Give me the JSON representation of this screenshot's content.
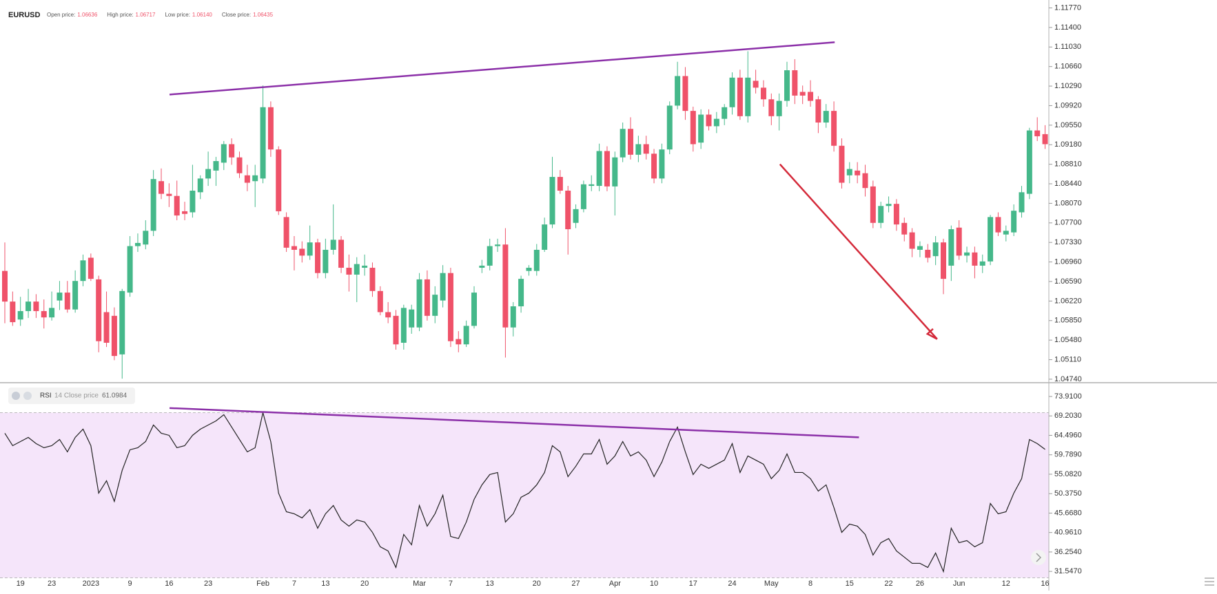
{
  "chart_data": [
    {
      "type": "candlestick",
      "title": "EURUSD",
      "readout": [
        {
          "label": "Open price:",
          "value": "1.06636"
        },
        {
          "label": "High price:",
          "value": "1.06717"
        },
        {
          "label": "Low price:",
          "value": "1.06140"
        },
        {
          "label": "Close price:",
          "value": "1.06435"
        }
      ],
      "categories": [
        null,
        null,
        "19",
        null,
        null,
        null,
        "23",
        null,
        null,
        null,
        null,
        "2023",
        null,
        null,
        null,
        null,
        "9",
        null,
        null,
        null,
        null,
        "16",
        null,
        null,
        null,
        null,
        "23",
        null,
        null,
        null,
        null,
        null,
        null,
        "Feb",
        null,
        null,
        null,
        "7",
        null,
        null,
        null,
        "13",
        null,
        null,
        null,
        null,
        "20",
        null,
        null,
        null,
        null,
        null,
        null,
        "Mar",
        null,
        null,
        null,
        "7",
        null,
        null,
        null,
        null,
        "13",
        null,
        null,
        null,
        null,
        null,
        "20",
        null,
        null,
        null,
        null,
        "27",
        null,
        null,
        null,
        null,
        "Apr",
        null,
        null,
        null,
        null,
        "10",
        null,
        null,
        null,
        null,
        "17",
        null,
        null,
        null,
        null,
        "24",
        null,
        null,
        null,
        null,
        "May",
        null,
        null,
        null,
        null,
        "8",
        null,
        null,
        null,
        null,
        "15",
        null,
        null,
        null,
        null,
        "22",
        null,
        null,
        null,
        "26",
        null,
        null,
        null,
        null,
        "Jun",
        null,
        null,
        null,
        null,
        null,
        "12",
        null,
        null,
        null,
        null,
        "16"
      ],
      "open": [
        1.0679,
        1.0621,
        1.0587,
        1.0603,
        1.0621,
        1.0603,
        1.0591,
        1.0623,
        1.0638,
        1.0606,
        1.066,
        1.0704,
        1.0663,
        1.0601,
        1.0594,
        1.0521,
        1.0638,
        1.0726,
        1.0729,
        1.0755,
        1.0849,
        1.0825,
        1.0821,
        1.0792,
        1.079,
        1.0828,
        1.0854,
        1.0869,
        1.0884,
        1.0919,
        1.0894,
        1.086,
        1.0849,
        1.0854,
        1.0989,
        1.0909,
        1.0781,
        1.0726,
        1.0721,
        1.0708,
        1.0733,
        1.0675,
        1.0719,
        1.0738,
        1.0685,
        1.0672,
        1.0685,
        1.0685,
        1.0641,
        1.0601,
        1.0594,
        1.0543,
        1.0572,
        1.0572,
        1.0663,
        1.0594,
        1.0623,
        1.0675,
        1.055,
        1.054,
        1.0575,
        1.0685,
        1.0689,
        1.0726,
        1.0729,
        1.0572,
        1.0612,
        1.0679,
        1.0679,
        1.0719,
        1.0767,
        1.0857,
        1.0831,
        1.077,
        1.0796,
        1.084,
        1.084,
        1.0906,
        1.0839,
        1.0894,
        1.0948,
        1.0899,
        1.0919,
        1.0901,
        1.0854,
        1.0909,
        1.0992,
        1.1048,
        1.0982,
        1.0922,
        1.0975,
        1.0953,
        1.0967,
        1.0989,
        1.1045,
        1.0972,
        1.1039,
        1.1026,
        1.1004,
        1.0972,
        1.1001,
        1.1059,
        1.1018,
        1.1018,
        1.1004,
        1.096,
        1.0982,
        1.0916,
        1.086,
        1.0869,
        1.0864,
        1.0839,
        1.077,
        1.0802,
        1.0806,
        1.077,
        1.0752,
        1.0719,
        1.0719,
        1.0707,
        1.0733,
        1.0689,
        1.0761,
        1.0708,
        1.0714,
        1.0689,
        1.0697,
        1.0781,
        1.0748,
        1.0752,
        1.079,
        1.0825,
        1.0945,
        1.0938
      ],
      "high": [
        1.0733,
        1.064,
        1.063,
        1.0645,
        1.0635,
        1.0625,
        1.064,
        1.066,
        1.066,
        1.068,
        1.071,
        1.0712,
        1.067,
        1.064,
        1.061,
        1.0645,
        1.0745,
        1.075,
        1.0775,
        1.087,
        1.0873,
        1.0845,
        1.085,
        1.081,
        1.088,
        1.086,
        1.0905,
        1.0895,
        1.0925,
        1.093,
        1.0905,
        1.088,
        1.088,
        1.103,
        1.1,
        1.0915,
        1.079,
        1.0745,
        1.0735,
        1.0765,
        1.074,
        1.074,
        1.0805,
        1.0745,
        1.071,
        1.0705,
        1.071,
        1.0695,
        1.065,
        1.062,
        1.0605,
        1.0615,
        1.0615,
        1.0675,
        1.068,
        1.065,
        1.069,
        1.0685,
        1.0565,
        1.0585,
        1.065,
        1.07,
        1.074,
        1.074,
        1.076,
        1.062,
        1.067,
        1.069,
        1.073,
        1.078,
        1.0895,
        1.087,
        1.084,
        1.0805,
        1.085,
        1.086,
        1.092,
        1.0915,
        1.0905,
        1.096,
        1.097,
        1.0935,
        1.0935,
        1.091,
        1.092,
        1.1,
        1.1075,
        1.1065,
        1.099,
        1.0985,
        1.0985,
        1.098,
        1.0995,
        1.1055,
        1.106,
        1.1095,
        1.106,
        1.104,
        1.1015,
        1.1015,
        1.1075,
        1.108,
        1.103,
        1.104,
        1.101,
        1.0995,
        1.1,
        1.093,
        1.0885,
        1.0885,
        1.088,
        1.085,
        1.081,
        1.082,
        1.0815,
        1.078,
        1.076,
        1.0735,
        1.073,
        1.0745,
        1.074,
        1.0765,
        1.0775,
        1.0725,
        1.0725,
        1.071,
        1.0785,
        1.079,
        1.0765,
        1.0805,
        1.084,
        1.095,
        1.097,
        1.0955
      ],
      "low": [
        1.058,
        1.0575,
        1.0575,
        1.059,
        1.059,
        1.057,
        1.0585,
        1.0605,
        1.06,
        1.06,
        1.065,
        1.066,
        1.0525,
        1.0535,
        1.051,
        1.0475,
        1.063,
        1.0715,
        1.072,
        1.0745,
        1.0815,
        1.08,
        1.0775,
        1.0775,
        1.078,
        1.0815,
        1.084,
        1.084,
        1.087,
        1.088,
        1.0855,
        1.083,
        1.08,
        1.0845,
        1.0895,
        1.0785,
        1.0715,
        1.068,
        1.0695,
        1.07,
        1.0665,
        1.0665,
        1.071,
        1.0675,
        1.064,
        1.062,
        1.067,
        1.063,
        1.0595,
        1.058,
        1.053,
        1.053,
        1.056,
        1.0565,
        1.0585,
        1.058,
        1.061,
        1.0535,
        1.0525,
        1.0535,
        1.057,
        1.0675,
        1.068,
        1.0715,
        1.0515,
        1.0555,
        1.06,
        1.067,
        1.067,
        1.0715,
        1.076,
        1.0825,
        1.071,
        1.076,
        1.079,
        1.083,
        1.083,
        1.083,
        1.0784,
        1.0885,
        1.089,
        1.0885,
        1.089,
        1.0845,
        1.0845,
        1.09,
        1.0985,
        1.0965,
        1.0905,
        1.091,
        1.0945,
        1.094,
        1.0955,
        1.0975,
        1.0965,
        1.096,
        1.1015,
        1.099,
        1.0955,
        1.0945,
        1.099,
        1.0995,
        1.0995,
        1.099,
        1.094,
        1.095,
        1.0905,
        1.0835,
        1.0845,
        1.0845,
        1.082,
        1.076,
        1.076,
        1.079,
        1.0755,
        1.0735,
        1.0705,
        1.0705,
        1.0695,
        1.069,
        1.0635,
        1.066,
        1.07,
        1.0695,
        1.0665,
        1.0675,
        1.069,
        1.0745,
        1.0735,
        1.0745,
        1.078,
        1.0815,
        1.0925,
        1.091
      ],
      "close": [
        1.0621,
        1.0582,
        1.0603,
        1.0621,
        1.0603,
        1.0591,
        1.0609,
        1.0638,
        1.0606,
        1.066,
        1.0699,
        1.0664,
        1.0546,
        1.0543,
        1.0518,
        1.0641,
        1.0726,
        1.0732,
        1.0755,
        1.0853,
        1.0825,
        1.0821,
        1.0784,
        1.0787,
        1.0831,
        1.0854,
        1.0872,
        1.0887,
        1.0919,
        1.0894,
        1.0864,
        1.0846,
        1.086,
        1.0989,
        1.0909,
        1.0792,
        1.0723,
        1.0719,
        1.0708,
        1.0733,
        1.0675,
        1.0719,
        1.0738,
        1.0685,
        1.0672,
        1.0692,
        1.0689,
        1.0641,
        1.0601,
        1.0591,
        1.054,
        1.0609,
        1.0606,
        1.0663,
        1.0594,
        1.0634,
        1.0675,
        1.0546,
        1.054,
        1.0575,
        1.0638,
        1.0689,
        1.0726,
        1.0729,
        1.0572,
        1.0612,
        1.0664,
        1.0685,
        1.0719,
        1.0767,
        1.0857,
        1.0831,
        1.0758,
        1.0796,
        1.0843,
        1.0843,
        1.0906,
        1.0839,
        1.0894,
        1.0948,
        1.0899,
        1.0919,
        1.0901,
        1.0854,
        1.0909,
        1.0992,
        1.1048,
        1.0982,
        1.0919,
        1.0975,
        1.0953,
        1.0967,
        1.0989,
        1.1045,
        1.0972,
        1.1045,
        1.1026,
        1.1004,
        1.0972,
        1.1001,
        1.1059,
        1.1011,
        1.1011,
        1.1001,
        1.096,
        1.0982,
        1.0916,
        1.0846,
        1.0872,
        1.086,
        1.0836,
        1.077,
        1.0802,
        1.0806,
        1.0767,
        1.0748,
        1.0721,
        1.0726,
        1.0704,
        1.0733,
        1.0664,
        1.0758,
        1.0708,
        1.0714,
        1.0689,
        1.0697,
        1.0781,
        1.0752,
        1.0755,
        1.0793,
        1.0828,
        1.0945,
        1.0934,
        1.0919
      ],
      "up_color": "#45b88a",
      "down_color": "#ef5269",
      "ylim": [
        1.047,
        1.1192
      ],
      "yticks": [
        {
          "value": 1.1177,
          "label": "1.11770"
        },
        {
          "value": 1.114,
          "label": "1.11400"
        },
        {
          "value": 1.1103,
          "label": "1.11030"
        },
        {
          "value": 1.1066,
          "label": "1.10660"
        },
        {
          "value": 1.1029,
          "label": "1.10290"
        },
        {
          "value": 1.0992,
          "label": "1.09920"
        },
        {
          "value": 1.0955,
          "label": "1.09550"
        },
        {
          "value": 1.0918,
          "label": "1.09180"
        },
        {
          "value": 1.0881,
          "label": "1.08810"
        },
        {
          "value": 1.0844,
          "label": "1.08440"
        },
        {
          "value": 1.0807,
          "label": "1.08070"
        },
        {
          "value": 1.077,
          "label": "1.07700"
        },
        {
          "value": 1.0733,
          "label": "1.07330"
        },
        {
          "value": 1.0696,
          "label": "1.06960"
        },
        {
          "value": 1.0659,
          "label": "1.06590"
        },
        {
          "value": 1.0622,
          "label": "1.06220"
        },
        {
          "value": 1.0585,
          "label": "1.05850"
        },
        {
          "value": 1.0548,
          "label": "1.05480"
        },
        {
          "value": 1.0511,
          "label": "1.05110"
        },
        {
          "value": 1.0474,
          "label": "1.04740"
        }
      ],
      "grid": false,
      "trendlines": [
        {
          "x": [
            21.06,
            106.1
          ],
          "y": [
            1.1013,
            1.1112
          ],
          "color": "#8b2fa8"
        }
      ],
      "arrows": [
        {
          "x": [
            99.1,
            119.2
          ],
          "y": [
            1.0881,
            1.055
          ],
          "color": "#d42a3a"
        }
      ]
    },
    {
      "type": "line",
      "title": "RSI",
      "subtitle": "14 Close price",
      "value_label": "61.0984",
      "values": [
        65,
        62,
        63,
        64,
        62.5,
        61.5,
        62,
        63.5,
        60.5,
        64,
        66,
        62,
        50.5,
        53.5,
        48.5,
        56,
        61,
        61.5,
        63,
        67,
        65,
        64.5,
        61.5,
        62,
        64.5,
        66,
        67,
        68,
        69.5,
        66.5,
        63.5,
        60.5,
        61.5,
        70,
        63,
        50.5,
        46,
        45.5,
        44.5,
        46.5,
        42,
        45.5,
        47.5,
        44,
        42.5,
        44,
        43.5,
        41,
        37.5,
        36.5,
        32.5,
        40.5,
        38,
        47.5,
        42.5,
        45.5,
        50,
        40,
        39.5,
        43.5,
        49,
        52.5,
        55,
        55.5,
        43.5,
        45.5,
        49.5,
        50.5,
        52.5,
        55.5,
        62,
        60.5,
        54.5,
        57,
        60,
        60,
        63.5,
        57.5,
        59.5,
        63,
        59.5,
        60.5,
        58.5,
        54.5,
        58,
        63,
        66.5,
        60.5,
        55,
        57.5,
        56.5,
        57.5,
        58.5,
        62.5,
        55.5,
        59.5,
        58.5,
        57.5,
        54,
        56,
        60,
        55.5,
        55.5,
        54,
        51,
        52.5,
        47,
        41,
        43,
        42.5,
        40.5,
        35.5,
        38.5,
        39.5,
        36.5,
        35,
        33.5,
        33.5,
        32.5,
        36,
        31.5,
        42,
        38.5,
        39,
        37.5,
        38.5,
        48,
        45.5,
        46,
        50.5,
        54,
        63.5,
        62.5,
        61.0984
      ],
      "color": "#222222",
      "band_color": "#f5e5fa",
      "levels": [
        30,
        70
      ],
      "ylim": [
        30.24,
        77.08
      ],
      "yticks": [
        {
          "value": 73.91,
          "label": "73.9100"
        },
        {
          "value": 69.203,
          "label": "69.2030"
        },
        {
          "value": 64.496,
          "label": "64.4960"
        },
        {
          "value": 59.789,
          "label": "59.7890"
        },
        {
          "value": 55.082,
          "label": "55.0820"
        },
        {
          "value": 50.375,
          "label": "50.3750"
        },
        {
          "value": 45.668,
          "label": "45.6680"
        },
        {
          "value": 40.961,
          "label": "40.9610"
        },
        {
          "value": 36.254,
          "label": "36.2540"
        },
        {
          "value": 31.547,
          "label": "31.5470"
        }
      ],
      "trendlines": [
        {
          "x": [
            21.06,
            109.2
          ],
          "y": [
            71.11,
            64.02
          ],
          "color": "#8b2fa8"
        }
      ]
    }
  ]
}
